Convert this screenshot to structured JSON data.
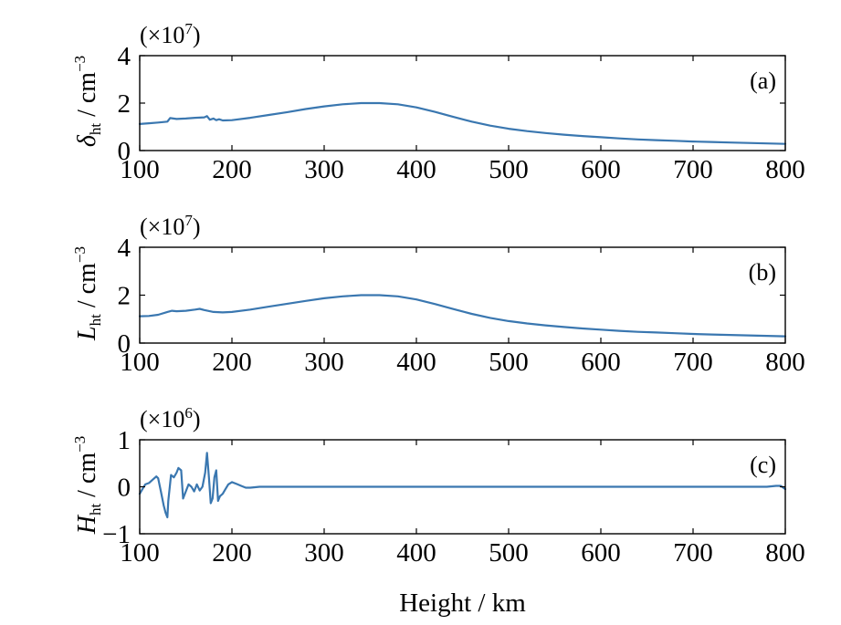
{
  "chart_data": [
    {
      "type": "line",
      "panel_label": "(a)",
      "scale_label_base": "(×10",
      "scale_label_exp": "7",
      "scale_label_close": ")",
      "ylabel_symbol": "δ",
      "ylabel_subscript": "ht",
      "ylabel_unit": " / cm",
      "ylabel_unit_exp": "−3",
      "xlim": [
        100,
        800
      ],
      "ylim": [
        0,
        4
      ],
      "xticks": [
        100,
        200,
        300,
        400,
        500,
        600,
        700,
        800
      ],
      "xtick_labels": [
        "100",
        "200",
        "300",
        "400",
        "500",
        "600",
        "700",
        "800"
      ],
      "yticks": [
        0,
        2,
        4
      ],
      "ytick_labels": [
        "0",
        "2",
        "4"
      ],
      "color": "#3a77b0",
      "series": [
        {
          "x": [
            100,
            110,
            120,
            130,
            133,
            140,
            150,
            160,
            170,
            173,
            176,
            180,
            183,
            186,
            190,
            200,
            220,
            240,
            260,
            280,
            300,
            320,
            340,
            360,
            380,
            400,
            420,
            440,
            460,
            480,
            500,
            520,
            540,
            560,
            580,
            600,
            620,
            640,
            660,
            680,
            700,
            720,
            740,
            760,
            780,
            800
          ],
          "y": [
            1.12,
            1.15,
            1.18,
            1.22,
            1.37,
            1.33,
            1.35,
            1.38,
            1.4,
            1.45,
            1.3,
            1.35,
            1.28,
            1.32,
            1.27,
            1.28,
            1.38,
            1.5,
            1.62,
            1.75,
            1.86,
            1.95,
            2.0,
            2.0,
            1.95,
            1.82,
            1.63,
            1.42,
            1.22,
            1.05,
            0.92,
            0.82,
            0.74,
            0.67,
            0.61,
            0.56,
            0.51,
            0.47,
            0.44,
            0.41,
            0.38,
            0.36,
            0.34,
            0.32,
            0.3,
            0.28
          ]
        }
      ]
    },
    {
      "type": "line",
      "panel_label": "(b)",
      "scale_label_base": "(×10",
      "scale_label_exp": "7",
      "scale_label_close": ")",
      "ylabel_symbol": "L",
      "ylabel_subscript": "ht",
      "ylabel_unit": " / cm",
      "ylabel_unit_exp": "−3",
      "xlim": [
        100,
        800
      ],
      "ylim": [
        0,
        4
      ],
      "xticks": [
        100,
        200,
        300,
        400,
        500,
        600,
        700,
        800
      ],
      "xtick_labels": [
        "100",
        "200",
        "300",
        "400",
        "500",
        "600",
        "700",
        "800"
      ],
      "yticks": [
        0,
        2,
        4
      ],
      "ytick_labels": [
        "0",
        "2",
        "4"
      ],
      "color": "#3a77b0",
      "series": [
        {
          "x": [
            100,
            110,
            120,
            130,
            135,
            140,
            150,
            160,
            165,
            170,
            180,
            190,
            200,
            220,
            240,
            260,
            280,
            300,
            320,
            340,
            360,
            380,
            400,
            420,
            440,
            460,
            480,
            500,
            520,
            540,
            560,
            580,
            600,
            620,
            640,
            660,
            680,
            700,
            720,
            740,
            760,
            780,
            800
          ],
          "y": [
            1.12,
            1.13,
            1.18,
            1.3,
            1.35,
            1.33,
            1.35,
            1.4,
            1.43,
            1.38,
            1.3,
            1.28,
            1.3,
            1.4,
            1.52,
            1.64,
            1.76,
            1.87,
            1.95,
            2.0,
            2.0,
            1.95,
            1.82,
            1.63,
            1.42,
            1.22,
            1.05,
            0.92,
            0.82,
            0.74,
            0.67,
            0.61,
            0.56,
            0.51,
            0.47,
            0.44,
            0.41,
            0.38,
            0.36,
            0.34,
            0.32,
            0.3,
            0.28
          ]
        }
      ]
    },
    {
      "type": "line",
      "panel_label": "(c)",
      "scale_label_base": "(×10",
      "scale_label_exp": "6",
      "scale_label_close": ")",
      "ylabel_symbol": "H",
      "ylabel_subscript": "ht",
      "ylabel_unit": " / cm",
      "ylabel_unit_exp": "−3",
      "xlabel": "Height / km",
      "xlim": [
        100,
        800
      ],
      "ylim": [
        -1,
        1
      ],
      "xticks": [
        100,
        200,
        300,
        400,
        500,
        600,
        700,
        800
      ],
      "xtick_labels": [
        "100",
        "200",
        "300",
        "400",
        "500",
        "600",
        "700",
        "800"
      ],
      "yticks": [
        -1,
        0,
        1
      ],
      "ytick_labels": [
        "−1",
        "0",
        "1"
      ],
      "color": "#3a77b0",
      "series": [
        {
          "x": [
            100,
            103,
            106,
            110,
            114,
            118,
            120,
            123,
            126,
            128,
            130,
            131,
            134,
            137,
            140,
            142,
            145,
            147,
            150,
            153,
            156,
            159,
            162,
            165,
            168,
            171,
            173,
            175,
            177,
            179,
            181,
            183,
            185,
            187,
            190,
            193,
            196,
            200,
            205,
            210,
            215,
            220,
            230,
            250,
            300,
            400,
            500,
            600,
            700,
            780,
            790,
            795,
            800
          ],
          "y": [
            -0.15,
            -0.05,
            0.05,
            0.08,
            0.15,
            0.22,
            0.18,
            -0.1,
            -0.4,
            -0.55,
            -0.65,
            -0.3,
            0.25,
            0.2,
            0.3,
            0.4,
            0.35,
            -0.25,
            -0.1,
            0.05,
            0.0,
            -0.1,
            0.05,
            -0.08,
            0.0,
            0.3,
            0.72,
            0.2,
            -0.35,
            -0.25,
            0.2,
            0.35,
            -0.3,
            -0.2,
            -0.15,
            -0.05,
            0.05,
            0.1,
            0.06,
            0.02,
            -0.02,
            -0.02,
            0.0,
            0.0,
            0.0,
            0.0,
            0.0,
            0.0,
            0.0,
            0.0,
            0.02,
            0.02,
            -0.05
          ]
        }
      ]
    }
  ]
}
